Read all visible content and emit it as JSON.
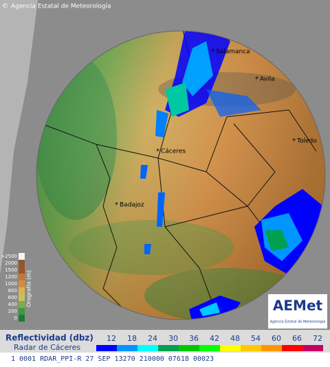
{
  "header": {
    "copyright": "Agencia Estatal de Meteorología"
  },
  "cities": [
    {
      "label": "Salamanca"
    },
    {
      "label": "Avila"
    },
    {
      "label": "Cáceres"
    },
    {
      "label": "Toledo"
    },
    {
      "label": "Badajoz"
    }
  ],
  "orography": {
    "title": "Orografía (m)",
    "levels": [
      ">2500",
      "2000",
      "1500",
      "1200",
      "1000",
      "800",
      "600",
      "400",
      "200",
      "0"
    ]
  },
  "logo": {
    "name": "AEMet",
    "subtitle": "Agencia Estatal de Meteorología"
  },
  "legend": {
    "title": "Reflectividad (dbz)",
    "subtitle": "Radar de Cáceres",
    "scale": [
      {
        "value": 12,
        "color": "#0000ff"
      },
      {
        "value": 18,
        "color": "#0096ff"
      },
      {
        "value": 24,
        "color": "#00ffff"
      },
      {
        "value": 30,
        "color": "#00a050"
      },
      {
        "value": 36,
        "color": "#00c800"
      },
      {
        "value": 42,
        "color": "#00ff00"
      },
      {
        "value": 48,
        "color": "#ffff00"
      },
      {
        "value": 54,
        "color": "#ffc800"
      },
      {
        "value": 60,
        "color": "#ff9600"
      },
      {
        "value": 66,
        "color": "#ff0000"
      },
      {
        "value": 72,
        "color": "#c80064"
      }
    ]
  },
  "status": "1 0001 RDAR_PPI-R  27 SEP 13270 210000 07618 00023"
}
